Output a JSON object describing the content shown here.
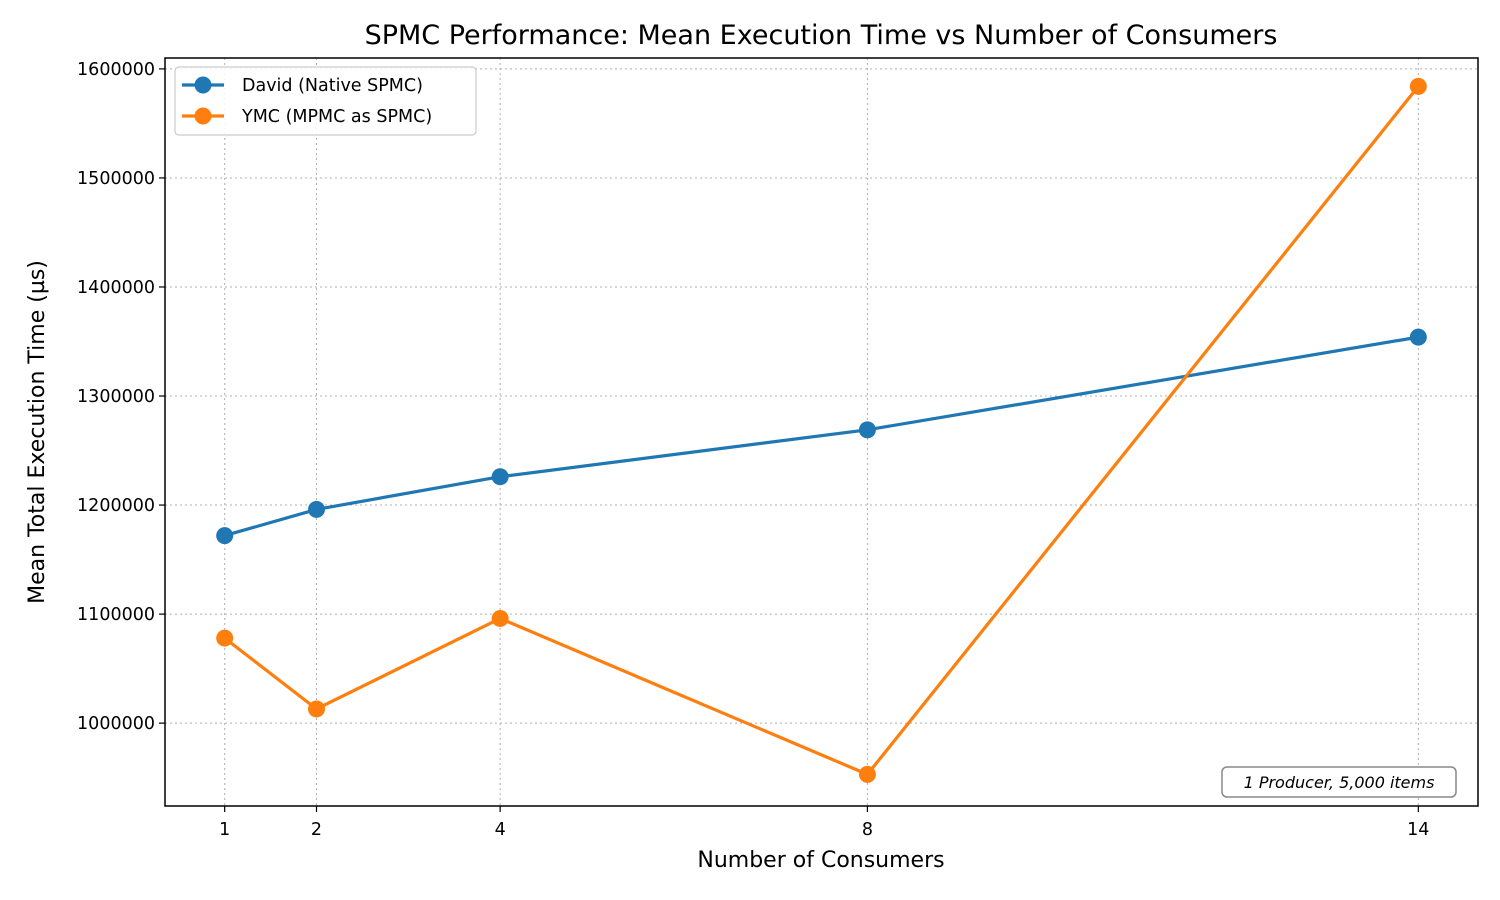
{
  "chart_data": {
    "type": "line",
    "title": "SPMC Performance: Mean Execution Time vs Number of Consumers",
    "xlabel": "Number of Consumers",
    "ylabel": "Mean Total Execution Time (µs)",
    "x": [
      1,
      2,
      4,
      8,
      14
    ],
    "xticks": [
      "1",
      "2",
      "4",
      "8",
      "14"
    ],
    "xlim": [
      0.35,
      14.65
    ],
    "ylim": [
      924000,
      1610000
    ],
    "yticks": [
      "1000000",
      "1100000",
      "1200000",
      "1300000",
      "1400000",
      "1500000",
      "1600000"
    ],
    "grid": true,
    "legend_position": "upper-left",
    "series": [
      {
        "name": "David (Native SPMC)",
        "color": "#1f77b4",
        "values": [
          1172000,
          1196000,
          1226000,
          1269000,
          1354000
        ]
      },
      {
        "name": "YMC (MPMC as SPMC)",
        "color": "#ff7f0e",
        "values": [
          1078000,
          1013000,
          1096000,
          953000,
          1584000
        ]
      }
    ],
    "annotation": "1 Producer, 5,000 items"
  }
}
